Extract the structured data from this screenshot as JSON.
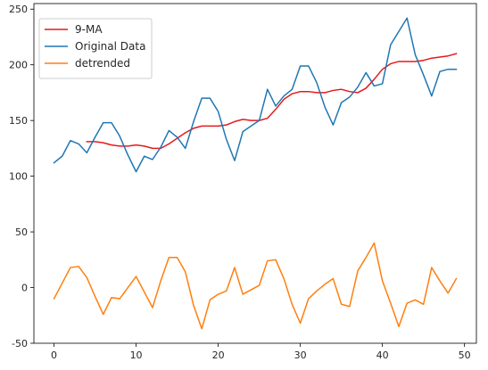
{
  "chart_data": {
    "type": "line",
    "title": "",
    "xlabel": "",
    "ylabel": "",
    "xlim": [
      -2.45,
      51.45
    ],
    "ylim": [
      -50,
      255
    ],
    "xticks": [
      0,
      10,
      20,
      30,
      40,
      50
    ],
    "yticks": [
      -50,
      0,
      50,
      100,
      150,
      200,
      250
    ],
    "grid": false,
    "legend_position": "top-left",
    "series": [
      {
        "name": "9-MA",
        "color": "#e41a1c",
        "x": [
          4,
          5,
          6,
          7,
          8,
          9,
          10,
          11,
          12,
          13,
          14,
          15,
          16,
          17,
          18,
          19,
          20,
          21,
          22,
          23,
          24,
          25,
          26,
          27,
          28,
          29,
          30,
          31,
          32,
          33,
          34,
          35,
          36,
          37,
          38,
          39,
          40,
          41,
          42,
          43,
          44,
          45,
          46,
          47,
          48,
          49
        ],
        "y": [
          131,
          131,
          130,
          128,
          127,
          127,
          128,
          127,
          125,
          125,
          129,
          134,
          139,
          143,
          145,
          145,
          145,
          146,
          149,
          151,
          150,
          150,
          152,
          160,
          169,
          174,
          176,
          176,
          175,
          175,
          177,
          178,
          176,
          175,
          179,
          187,
          196,
          201,
          203,
          203,
          203,
          204,
          206,
          207,
          208,
          210
        ]
      },
      {
        "name": "Original Data",
        "color": "#1f77b4",
        "x": [
          0,
          1,
          2,
          3,
          4,
          5,
          6,
          7,
          8,
          9,
          10,
          11,
          12,
          13,
          14,
          15,
          16,
          17,
          18,
          19,
          20,
          21,
          22,
          23,
          24,
          25,
          26,
          27,
          28,
          29,
          30,
          31,
          32,
          33,
          34,
          35,
          36,
          37,
          38,
          39,
          40,
          41,
          42,
          43,
          44,
          45,
          46,
          47,
          48,
          49
        ],
        "y": [
          112,
          118,
          132,
          129,
          121,
          135,
          148,
          148,
          136,
          119,
          104,
          118,
          115,
          126,
          141,
          135,
          125,
          149,
          170,
          170,
          158,
          133,
          114,
          140,
          145,
          150,
          178,
          163,
          172,
          178,
          199,
          199,
          184,
          162,
          146,
          166,
          171,
          180,
          193,
          181,
          183,
          218,
          230,
          242,
          209,
          191,
          172,
          194,
          196,
          196
        ]
      },
      {
        "name": "detrended",
        "color": "#ff7f0e",
        "x": [
          0,
          1,
          2,
          3,
          4,
          5,
          6,
          7,
          8,
          9,
          10,
          11,
          12,
          13,
          14,
          15,
          16,
          17,
          18,
          19,
          20,
          21,
          22,
          23,
          24,
          25,
          26,
          27,
          28,
          29,
          30,
          31,
          32,
          33,
          34,
          35,
          36,
          37,
          38,
          39,
          40,
          41,
          42,
          43,
          44,
          45,
          46,
          47,
          48,
          49
        ],
        "y": [
          -10,
          4,
          18,
          19,
          9,
          -8,
          -24,
          -9,
          -10,
          0,
          10,
          -4,
          -18,
          6,
          27,
          27,
          14,
          -16,
          -37,
          -11,
          -6,
          -3,
          18,
          -6,
          -2,
          2,
          24,
          25,
          8,
          -15,
          -32,
          -10,
          -3,
          3,
          8,
          -15,
          -17,
          15,
          27,
          40,
          6,
          -14,
          -35,
          -14,
          -11,
          -15,
          18,
          6,
          -5,
          8
        ]
      }
    ]
  }
}
